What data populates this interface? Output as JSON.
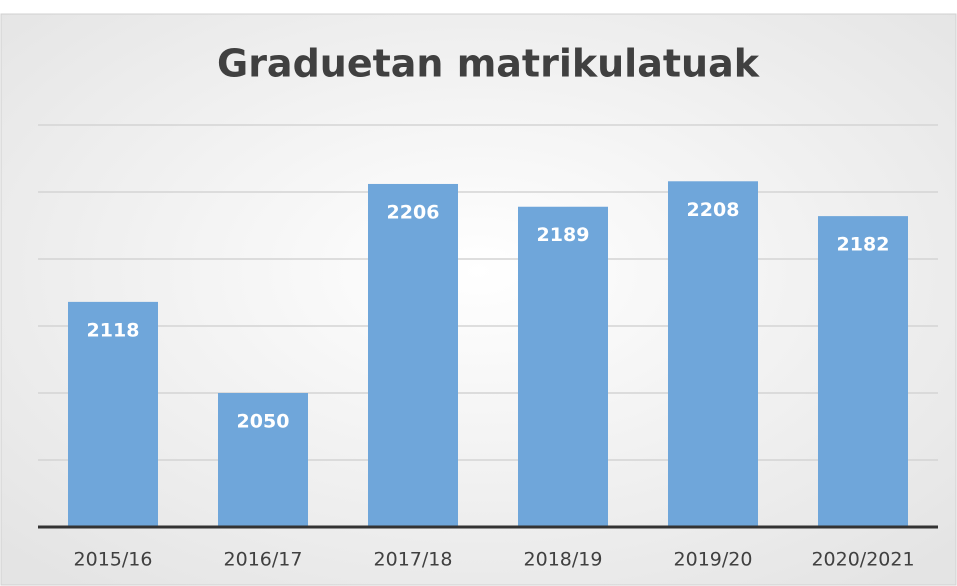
{
  "chart_data": {
    "type": "bar",
    "title": "Graduetan matrikulatuak",
    "categories": [
      "2015/16",
      "2016/17",
      "2017/18",
      "2018/19",
      "2019/20",
      "2020/2021"
    ],
    "values": [
      2118,
      2050,
      2206,
      2189,
      2208,
      2182
    ],
    "color": "#6fa6da",
    "ylim": [
      1950,
      2250
    ],
    "yticks": [
      2000,
      2050,
      2100,
      2150,
      2200,
      2250
    ],
    "grid": true
  }
}
